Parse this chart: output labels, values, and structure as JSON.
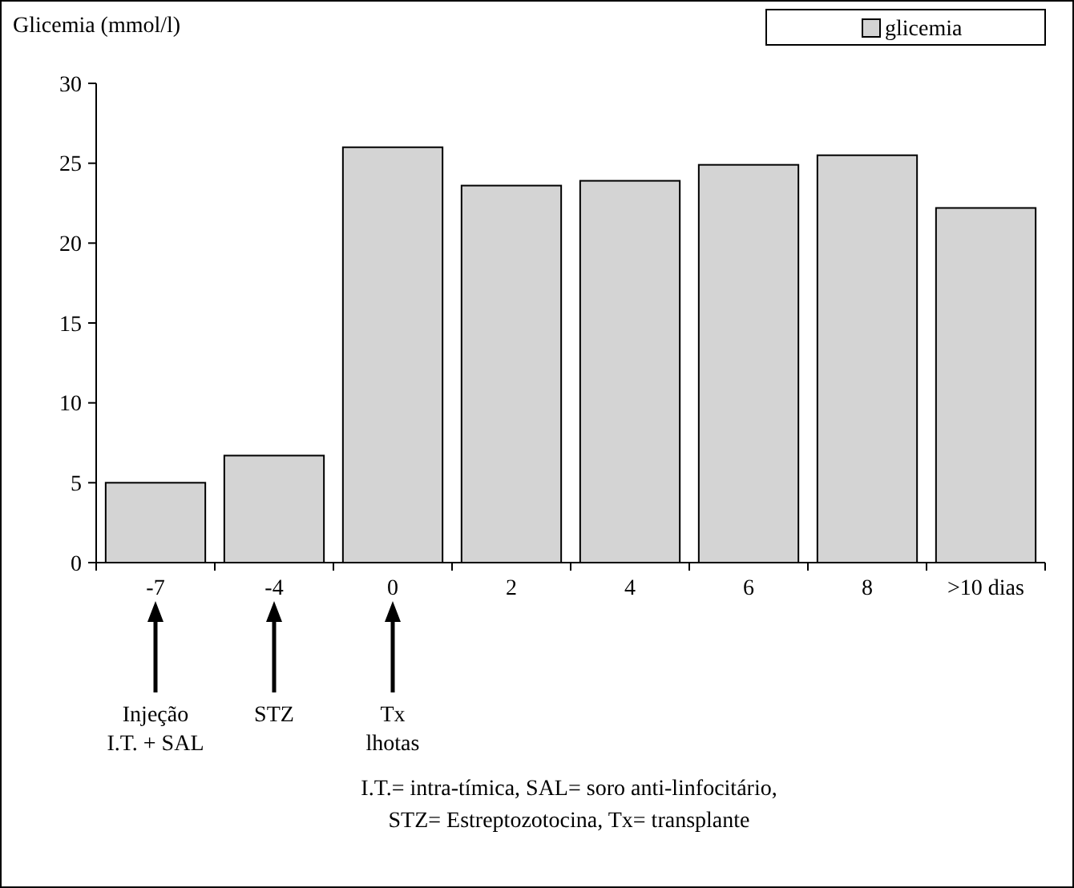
{
  "chart_data": {
    "type": "bar",
    "ylabel": "Glicemia (mmol/l)",
    "categories": [
      "-7",
      "-4",
      "0",
      "2",
      "4",
      "6",
      "8",
      ">10 dias"
    ],
    "series": [
      {
        "name": "glicemia",
        "color": "#d4d4d4",
        "values": [
          5.0,
          6.7,
          26.0,
          23.6,
          23.9,
          24.9,
          25.5,
          22.2
        ]
      }
    ],
    "ylim": [
      0,
      30
    ],
    "yticks": [
      0,
      5,
      10,
      15,
      20,
      25,
      30
    ],
    "grid": false,
    "legend": "top right",
    "annotations": [
      "Injeção\nI.T. + SAL",
      "STZ",
      "Tx\nlhotas",
      "I.T.= intra-tímica, SAL= soro anti-linfocitário,\nSTZ= Estreptozotocina, Tx= transplante"
    ]
  }
}
